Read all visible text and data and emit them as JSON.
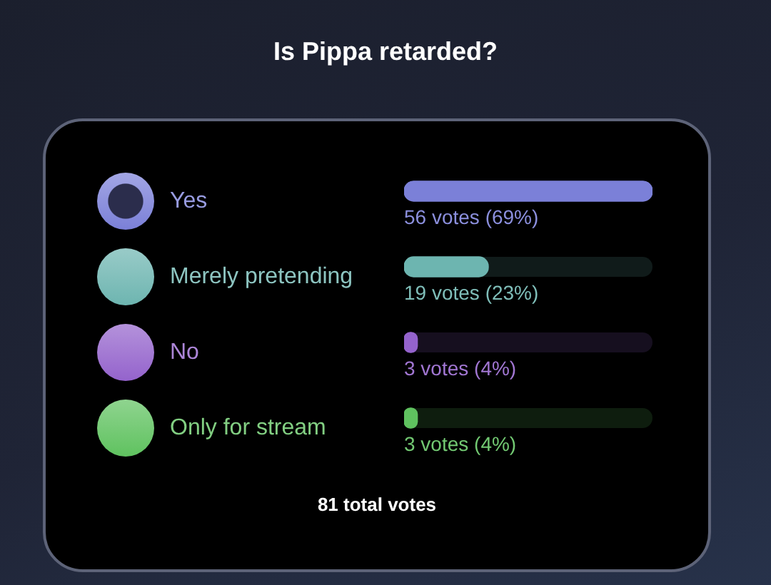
{
  "chart_data": {
    "type": "bar",
    "orientation": "horizontal",
    "title": "Is Pippa retarded?",
    "categories": [
      "Yes",
      "Merely pretending",
      "No",
      "Only for stream"
    ],
    "values": [
      56,
      19,
      3,
      3
    ],
    "colors": [
      "#7b80d8",
      "#6db5b0",
      "#9463cc",
      "#5fc25f"
    ],
    "value_labels": [
      "56 votes (69%)",
      "19 votes (23%)",
      "3 votes (4%)",
      "3 votes (4%)"
    ],
    "xlim": [
      0,
      56
    ],
    "tick_labels": "y",
    "annotations": [
      "81 total votes"
    ]
  }
}
